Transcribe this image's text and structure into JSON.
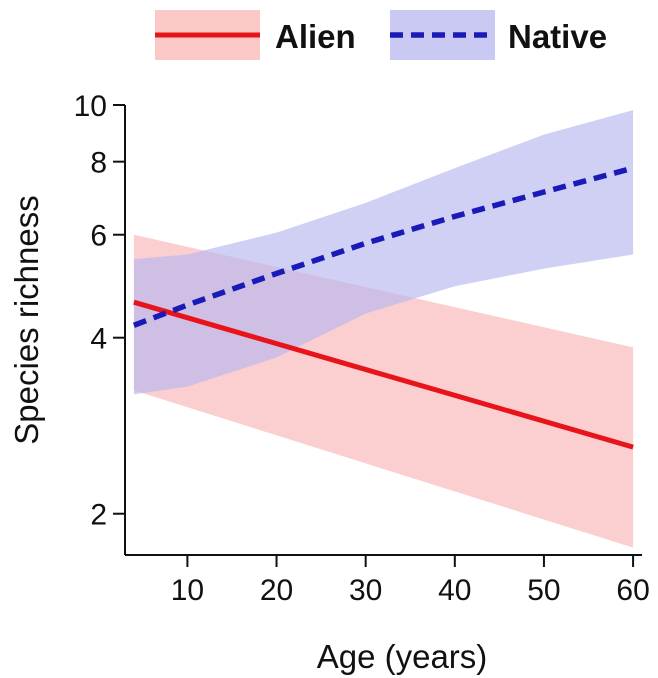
{
  "chart_data": {
    "type": "line",
    "title": "",
    "xlabel": "Age (years)",
    "ylabel": "Species richness",
    "xlim": [
      3,
      61
    ],
    "ylim": [
      1.7,
      10
    ],
    "yscale": "log",
    "xticks": [
      10,
      20,
      30,
      40,
      50,
      60
    ],
    "yticks": [
      2,
      4,
      6,
      8,
      10
    ],
    "grid": false,
    "legend_position": "top",
    "series": [
      {
        "name": "Alien",
        "color": "#e8141b",
        "band_color": "#f9b6b6",
        "line_style": "solid",
        "x": [
          4,
          60
        ],
        "y": [
          4.6,
          2.6
        ],
        "ci_lower": [
          3.25,
          1.75
        ],
        "ci_upper": [
          6.0,
          3.85
        ]
      },
      {
        "name": "Native",
        "color": "#1a1ab8",
        "band_color": "#b7b7f0",
        "line_style": "dashed",
        "x": [
          4,
          10,
          20,
          30,
          40,
          50,
          60
        ],
        "y": [
          4.2,
          4.55,
          5.15,
          5.8,
          6.45,
          7.1,
          7.8
        ],
        "ci_lower": [
          3.2,
          3.3,
          3.7,
          4.4,
          4.9,
          5.25,
          5.55
        ],
        "ci_upper": [
          5.45,
          5.55,
          6.05,
          6.8,
          7.8,
          8.9,
          9.8
        ]
      }
    ]
  }
}
